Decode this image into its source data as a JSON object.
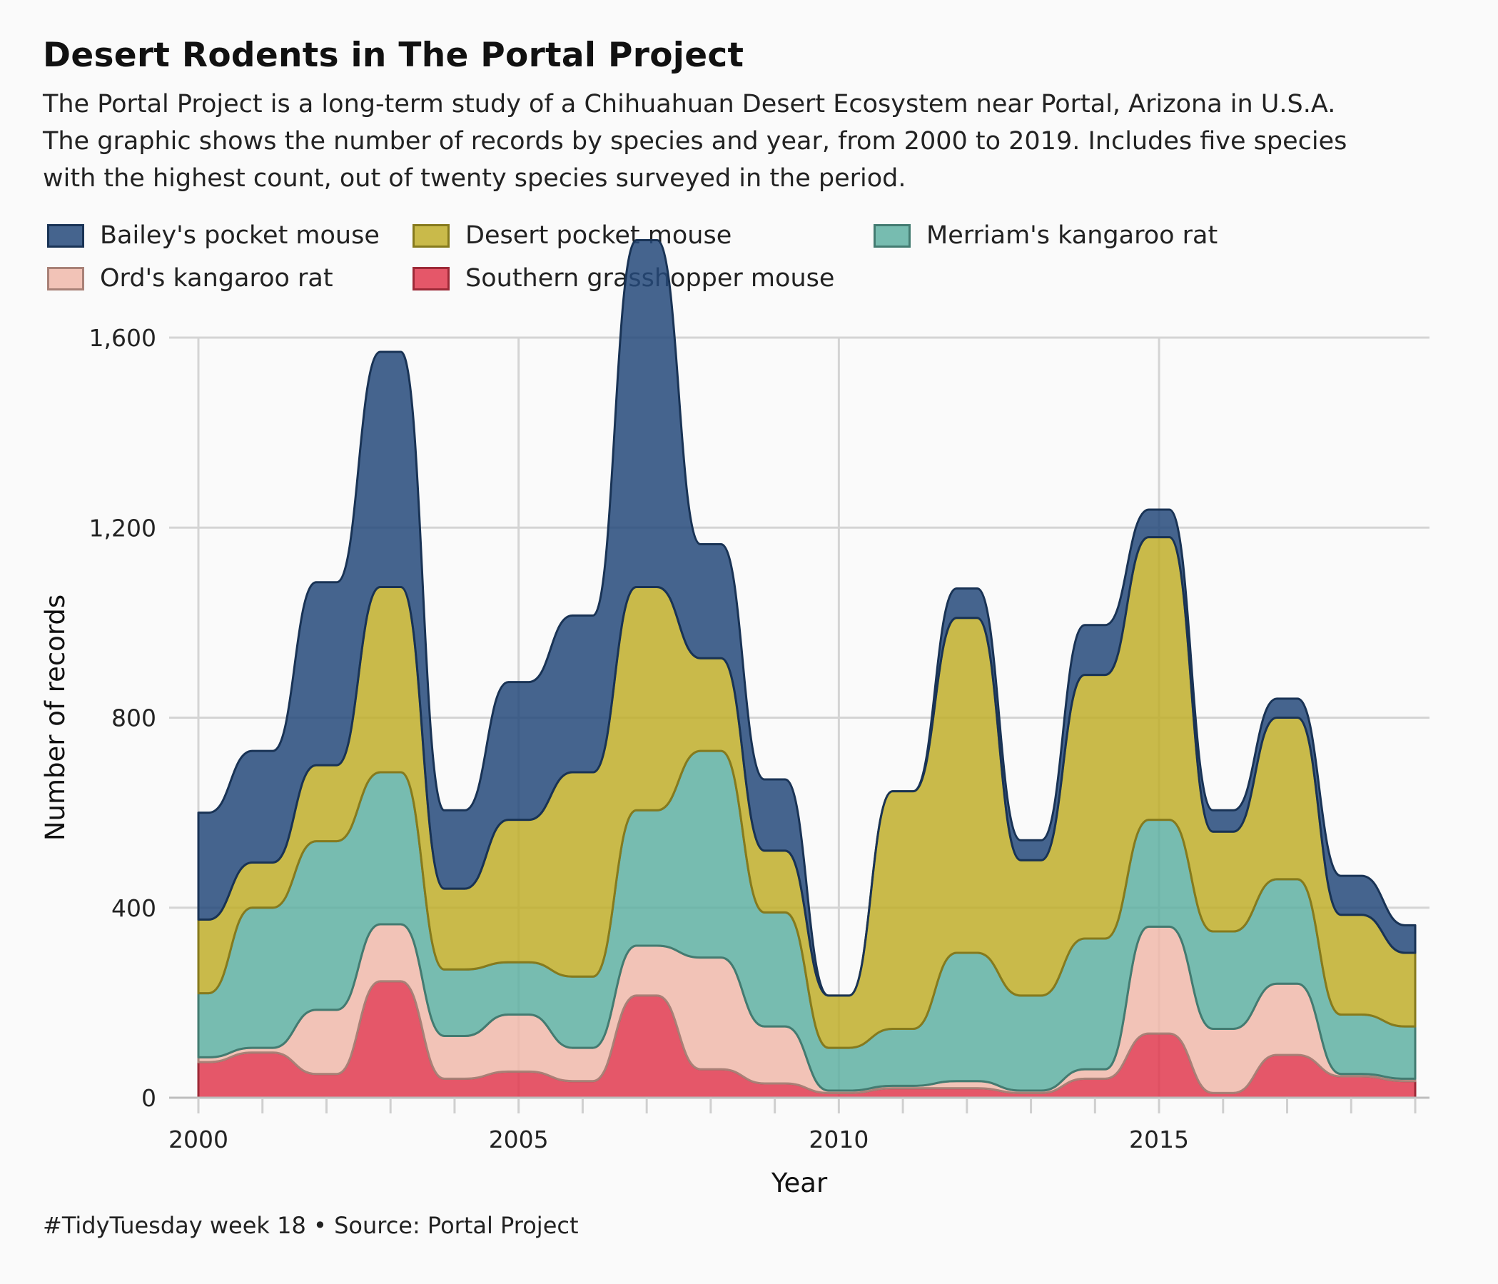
{
  "header": {
    "title": "Desert Rodents in The Portal Project",
    "subtitle_lines": [
      "The Portal Project is a long-term study of a Chihuahuan Desert Ecosystem near Portal, Arizona in U.S.A.",
      "The graphic shows the number of records by species and year, from 2000 to 2019. Includes five species",
      "with the highest count, out of twenty species surveyed in the period."
    ]
  },
  "caption": "#TidyTuesday week 18  •  Source: Portal Project",
  "chart_data": {
    "type": "area",
    "xlabel": "Year",
    "ylabel": "Number of records",
    "xlim": [
      2000,
      2019
    ],
    "ylim": [
      0,
      1600
    ],
    "x_ticks": [
      2000,
      2005,
      2010,
      2015
    ],
    "y_ticks": [
      0,
      400,
      800,
      1200,
      1600
    ],
    "y_tick_labels": [
      "0",
      "400",
      "800",
      "1,200",
      "1,600"
    ],
    "grid": true,
    "legend_position": "top-left",
    "x": [
      2000,
      2001,
      2002,
      2003,
      2004,
      2005,
      2006,
      2007,
      2008,
      2009,
      2010,
      2011,
      2012,
      2013,
      2014,
      2015,
      2016,
      2017,
      2018,
      2019
    ],
    "series": [
      {
        "name": "Bailey's pocket mouse",
        "color": "#24497a",
        "values": [
          225,
          235,
          385,
          495,
          165,
          290,
          330,
          730,
          240,
          150,
          0,
          0,
          62,
          42,
          105,
          58,
          45,
          40,
          82,
          58
        ]
      },
      {
        "name": "Desert pocket mouse",
        "color": "#bfae2a",
        "values": [
          155,
          95,
          160,
          390,
          170,
          300,
          430,
          470,
          195,
          130,
          110,
          500,
          705,
          285,
          555,
          595,
          210,
          340,
          210,
          155
        ]
      },
      {
        "name": "Merriam's kangaroo rat",
        "color": "#5fb0a2",
        "values": [
          135,
          295,
          355,
          320,
          140,
          110,
          150,
          285,
          435,
          240,
          90,
          120,
          270,
          200,
          275,
          225,
          205,
          220,
          125,
          110
        ]
      },
      {
        "name": "Ord's kangaroo rat",
        "color": "#f0b8aa",
        "values": [
          10,
          10,
          135,
          120,
          90,
          120,
          70,
          105,
          235,
          120,
          5,
          5,
          15,
          5,
          20,
          225,
          135,
          150,
          5,
          5
        ]
      },
      {
        "name": "Southern grasshopper mouse",
        "color": "#e03a4f",
        "values": [
          75,
          95,
          50,
          245,
          40,
          55,
          35,
          215,
          60,
          30,
          10,
          20,
          20,
          10,
          40,
          135,
          10,
          90,
          45,
          35
        ]
      }
    ]
  }
}
